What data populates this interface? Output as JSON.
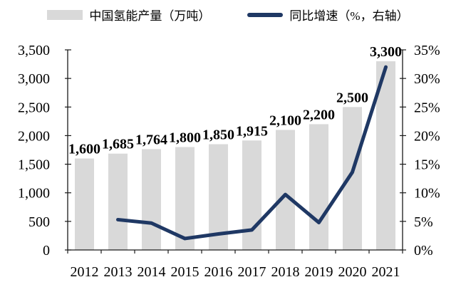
{
  "legend": {
    "bar_label": "中国氢能产量（万吨）",
    "line_label": "同比增速（%，右轴）"
  },
  "chart_data": {
    "type": "bar+line",
    "categories": [
      "2012",
      "2013",
      "2014",
      "2015",
      "2016",
      "2017",
      "2018",
      "2019",
      "2020",
      "2021"
    ],
    "series": [
      {
        "name": "中国氢能产量（万吨）",
        "type": "bar",
        "axis": "left",
        "color": "#d9d9d9",
        "values": [
          1600,
          1685,
          1764,
          1800,
          1850,
          1915,
          2100,
          2200,
          2500,
          3300
        ],
        "data_labels": [
          "1,600",
          "1,685",
          "1,764",
          "1,800",
          "1,850",
          "1,915",
          "2,100",
          "2,200",
          "2,500",
          "3,300"
        ]
      },
      {
        "name": "同比增速（%，右轴）",
        "type": "line",
        "axis": "right",
        "color": "#1f3864",
        "values": [
          null,
          5.3,
          4.7,
          2.0,
          2.8,
          3.5,
          9.7,
          4.8,
          13.6,
          32.0
        ]
      }
    ],
    "left_axis": {
      "min": 0,
      "max": 3500,
      "step": 500,
      "tick_labels": [
        "0",
        "500",
        "1,000",
        "1,500",
        "2,000",
        "2,500",
        "3,000",
        "3,500"
      ]
    },
    "right_axis": {
      "min": 0,
      "max": 35,
      "step": 5,
      "tick_labels": [
        "0%",
        "5%",
        "10%",
        "15%",
        "20%",
        "25%",
        "30%",
        "35%"
      ]
    },
    "grid": false,
    "legend_position": "top",
    "background": "#ffffff",
    "axis_color": "#1a1a1a",
    "text_color": "#000000"
  }
}
